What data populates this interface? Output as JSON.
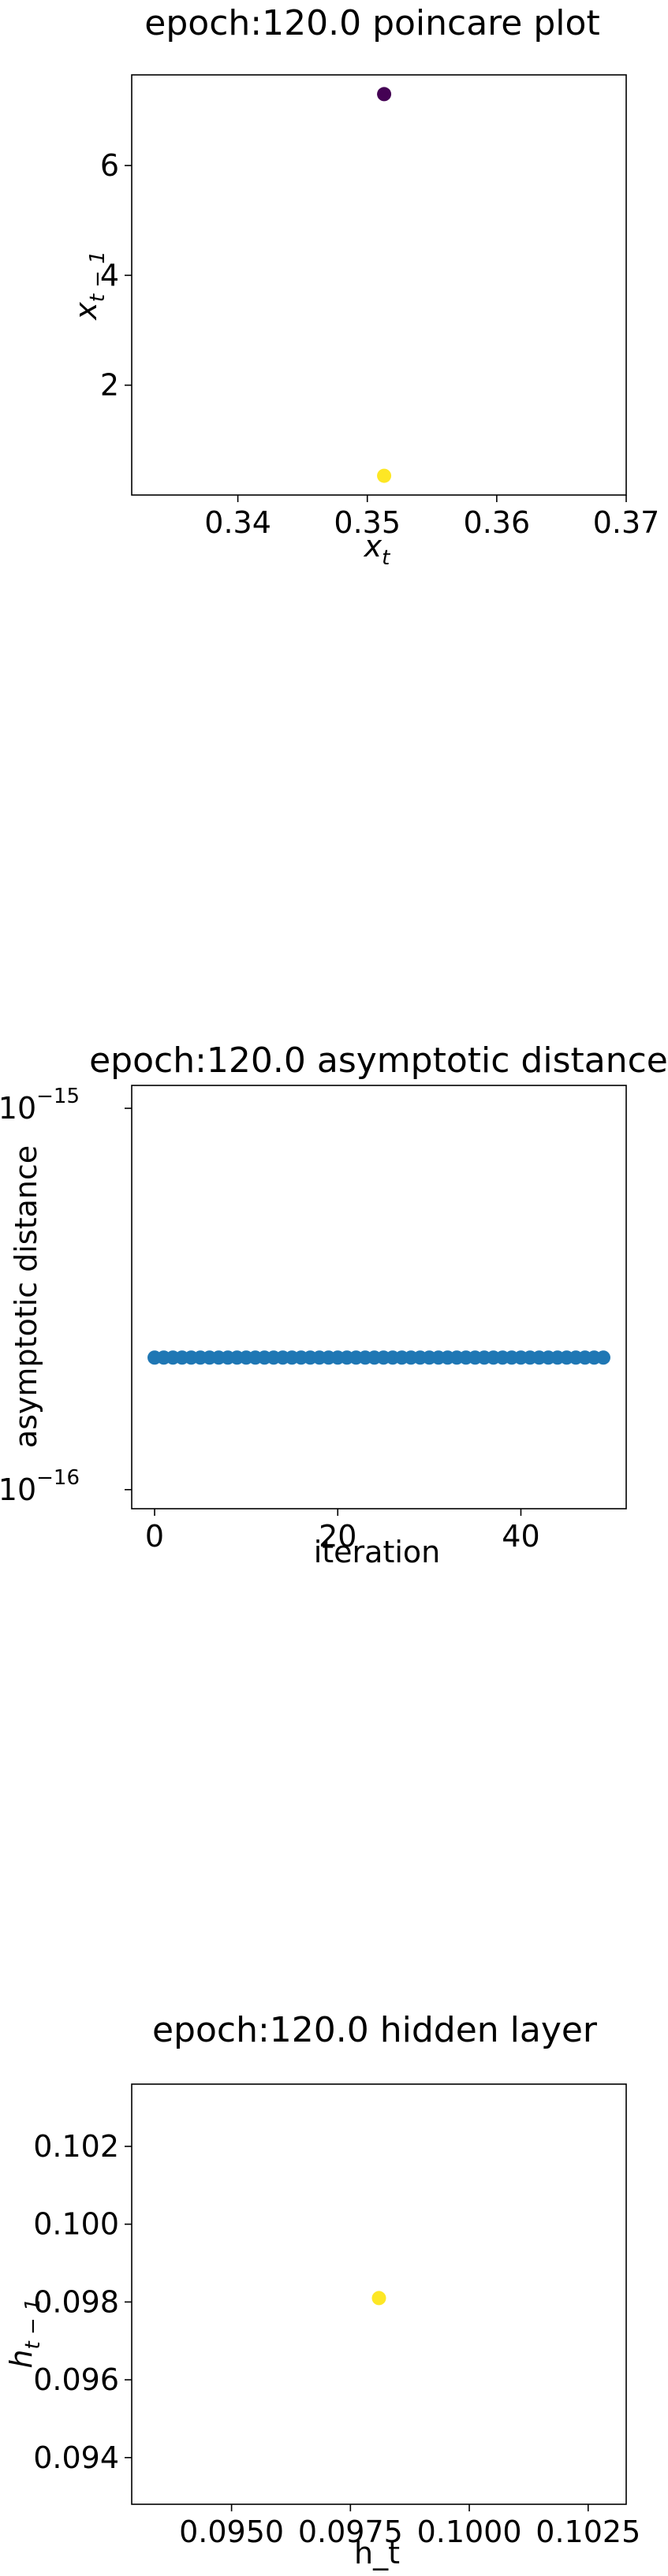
{
  "chart_data": [
    {
      "type": "scatter",
      "title": "epoch:120.0 poincare plot",
      "xlabel": "x_t",
      "ylabel": "x_{t-1}",
      "xlim": [
        0.3318,
        0.37
      ],
      "ylim": [
        0.0,
        7.65
      ],
      "xticks": [
        0.34,
        0.35,
        0.36,
        0.37
      ],
      "xtick_labels": [
        "0.34",
        "0.35",
        "0.36",
        "0.37"
      ],
      "yticks": [
        2,
        4,
        6
      ],
      "ytick_labels": [
        "2",
        "4",
        "6"
      ],
      "grid": false,
      "points": [
        {
          "x": 0.3513,
          "y": 7.3,
          "color": "#440154"
        },
        {
          "x": 0.3513,
          "y": 0.35,
          "color": "#fde725"
        }
      ]
    },
    {
      "type": "scatter",
      "title": "epoch:120.0 asymptotic distance",
      "xlabel": "iteration",
      "ylabel": "asymptotic distance",
      "xlim": [
        -2.5,
        51.5
      ],
      "ylim_log10": [
        -16.05,
        -14.94
      ],
      "yscale": "log",
      "xticks": [
        0,
        20,
        40
      ],
      "xtick_labels": [
        "0",
        "20",
        "40"
      ],
      "yticks": [
        1e-16,
        1e-15
      ],
      "ytick_labels": [
        {
          "base": "10",
          "exp": "−16"
        },
        {
          "base": "10",
          "exp": "−15"
        }
      ],
      "grid": false,
      "color": "#1f77b4",
      "x": [
        0,
        1,
        2,
        3,
        4,
        5,
        6,
        7,
        8,
        9,
        10,
        11,
        12,
        13,
        14,
        15,
        16,
        17,
        18,
        19,
        20,
        21,
        22,
        23,
        24,
        25,
        26,
        27,
        28,
        29,
        30,
        31,
        32,
        33,
        34,
        35,
        36,
        37,
        38,
        39,
        40,
        41,
        42,
        43,
        44,
        45,
        46,
        47,
        48,
        49
      ],
      "y_constant": 2.22e-16
    },
    {
      "type": "scatter",
      "title": "epoch:120.0 hidden layer",
      "xlabel": "h_t",
      "ylabel": "h_{t-1}",
      "xlim": [
        0.0929,
        0.1033
      ],
      "ylim": [
        0.0928,
        0.1036
      ],
      "xticks": [
        0.095,
        0.0975,
        0.1,
        0.1025
      ],
      "xtick_labels": [
        "0.0950",
        "0.0975",
        "0.1000",
        "0.1025"
      ],
      "yticks": [
        0.094,
        0.096,
        0.098,
        0.1,
        0.102
      ],
      "ytick_labels": [
        "0.094",
        "0.096",
        "0.098",
        "0.100",
        "0.102"
      ],
      "grid": false,
      "points": [
        {
          "x": 0.0981,
          "y": 0.0981,
          "color": "#fde725"
        }
      ]
    }
  ]
}
